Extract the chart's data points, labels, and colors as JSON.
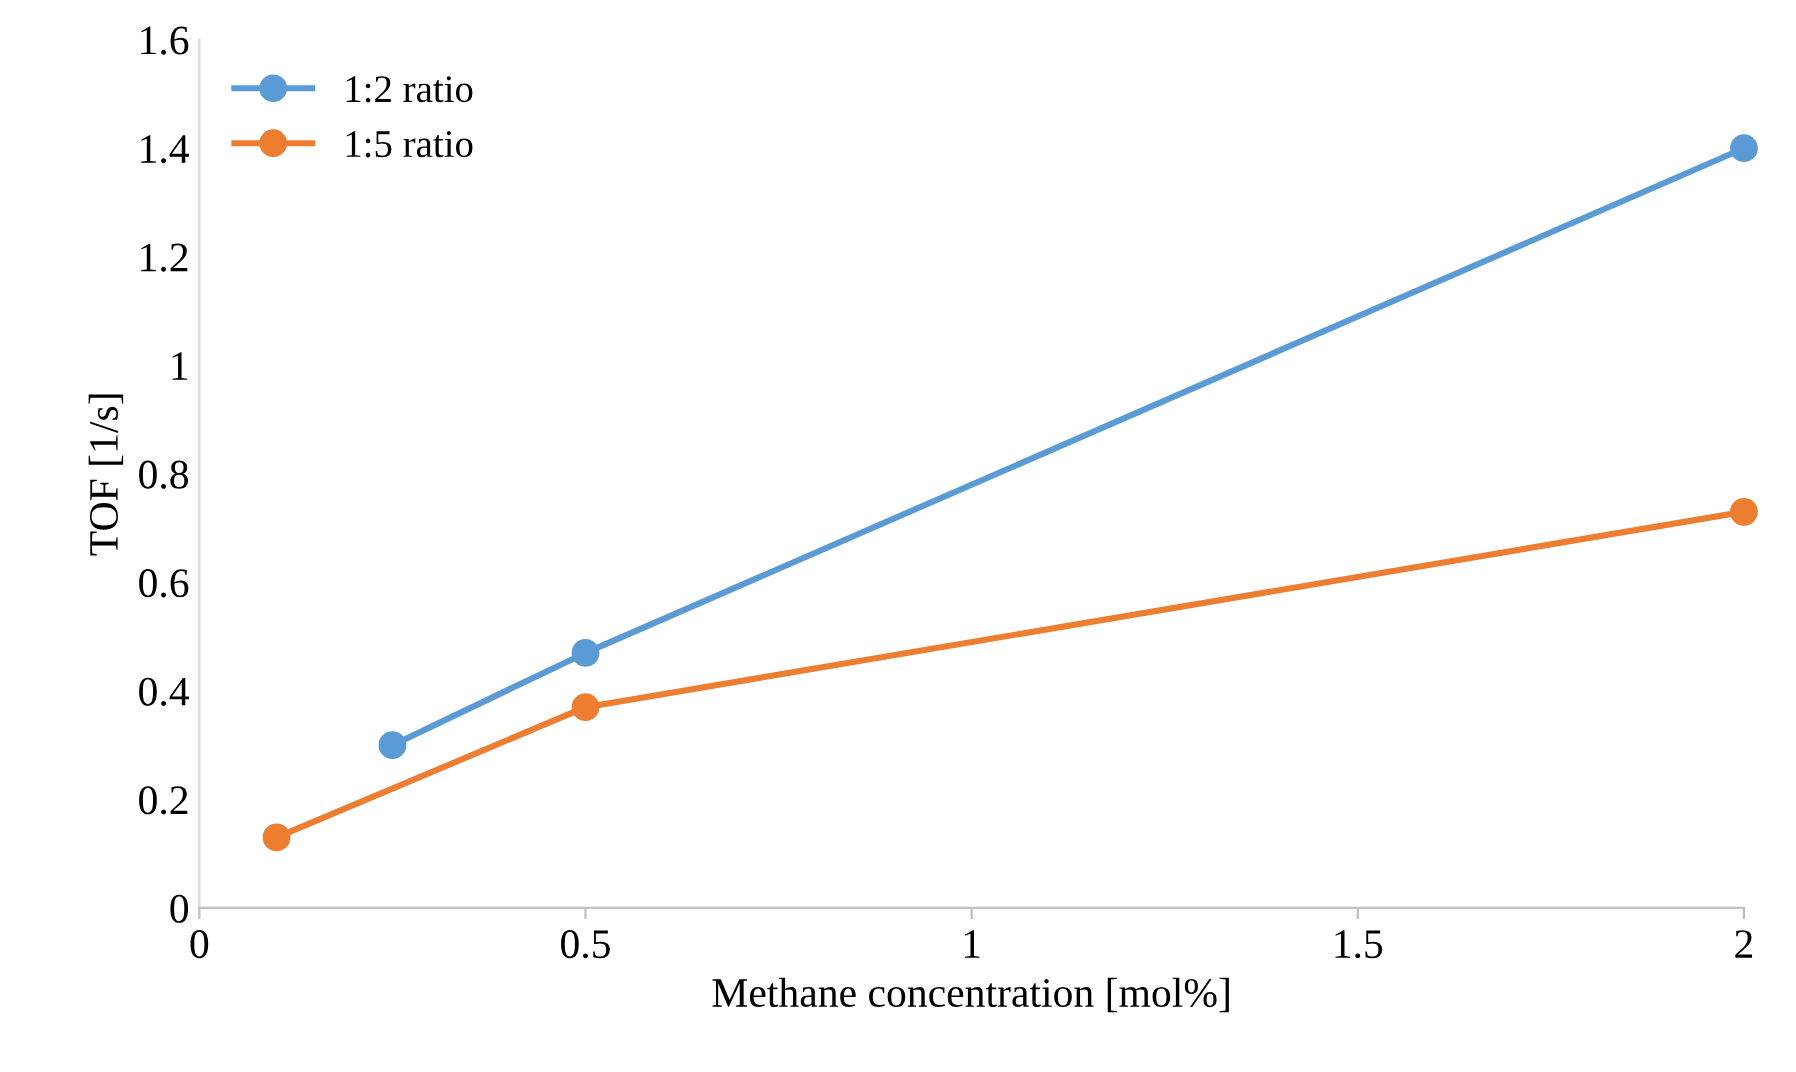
{
  "chart_data": {
    "type": "line",
    "xlabel": "Methane concentration [mol%]",
    "ylabel": "TOF [1/s]",
    "series": [
      {
        "name": "1:2 ratio",
        "color": "#5b9bd5",
        "x": [
          0.25,
          0.5,
          2
        ],
        "values": [
          0.3,
          0.47,
          1.4
        ]
      },
      {
        "name": "1:5 ratio",
        "color": "#ed7d31",
        "x": [
          0.1,
          0.5,
          2
        ],
        "values": [
          0.13,
          0.37,
          0.73
        ]
      }
    ],
    "xlim": [
      0,
      2
    ],
    "xticks": [
      0,
      0.5,
      1,
      1.5,
      2
    ],
    "ylim": [
      0,
      1.6
    ],
    "yticks": [
      0,
      0.2,
      0.4,
      0.6,
      0.8,
      1,
      1.2,
      1.4,
      1.6
    ],
    "grid": false,
    "legend": "top left",
    "marker": "circle",
    "line_style": "solid"
  }
}
